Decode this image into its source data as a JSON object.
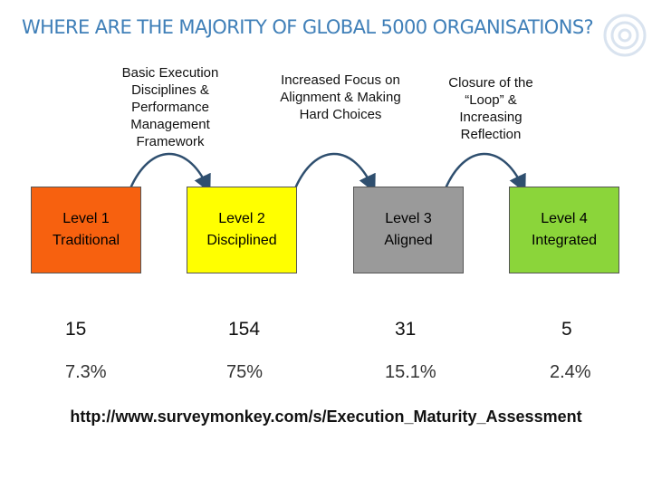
{
  "title": "WHERE ARE THE MAJORITY OF GLOBAL 5000 ORGANISATIONS?",
  "captions": [
    "Basic Execution Disciplines & Performance Management Framework",
    "Increased Focus on Alignment & Making Hard Choices",
    "Closure of the “Loop” & Increasing Reflection"
  ],
  "levels": [
    {
      "line1": "Level 1",
      "line2": "Traditional",
      "color": "#f7610f",
      "count": "15",
      "percent": "7.3%"
    },
    {
      "line1": "Level 2",
      "line2": "Disciplined",
      "color": "#ffff00",
      "count": "154",
      "percent": "75%"
    },
    {
      "line1": "Level 3",
      "line2": "Aligned",
      "color": "#9a9a9a",
      "count": "31",
      "percent": "15.1%"
    },
    {
      "line1": "Level 4",
      "line2": "Integrated",
      "color": "#8bd53a",
      "count": "5",
      "percent": "2.4%"
    }
  ],
  "url": "http://www.surveymonkey.com/s/Execution_Maturity_Assessment",
  "icons": {
    "logo": "circular-logo-icon",
    "arrow": "curved-arrow-icon"
  }
}
